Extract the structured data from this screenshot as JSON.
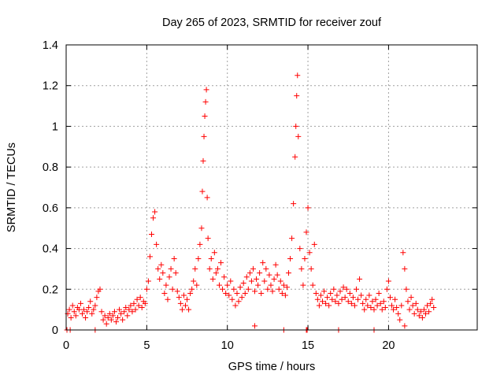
{
  "chart_data": {
    "type": "scatter",
    "title": "Day 265 of 2023, SRMTID for receiver zouf",
    "xlabel": "GPS time / hours",
    "ylabel": "SRMTID / TECUs",
    "xlim": [
      0,
      25.5
    ],
    "ylim": [
      0,
      1.4
    ],
    "xticks": [
      0,
      5,
      10,
      15,
      20
    ],
    "yticks": [
      0,
      0.2,
      0.4,
      0.6,
      0.8,
      1,
      1.2,
      1.4
    ],
    "xtick_labels": [
      "0",
      "5",
      "10",
      "15",
      "20"
    ],
    "ytick_labels": [
      "0",
      "0.2",
      "0.4",
      "0.6",
      "0.8",
      "1",
      "1.2",
      "1.4"
    ],
    "grid": true,
    "marker": "+",
    "series": [
      {
        "name": "SRMTID",
        "color": "#ff0000",
        "points": [
          [
            0.1,
            0.08
          ],
          [
            0.2,
            0.1
          ],
          [
            0.3,
            0.06
          ],
          [
            0.4,
            0.12
          ],
          [
            0.5,
            0.09
          ],
          [
            0.6,
            0.07
          ],
          [
            0.7,
            0.11
          ],
          [
            0.8,
            0.1
          ],
          [
            0.9,
            0.13
          ],
          [
            1.0,
            0.08
          ],
          [
            1.1,
            0.1
          ],
          [
            1.2,
            0.06
          ],
          [
            1.3,
            0.09
          ],
          [
            1.4,
            0.11
          ],
          [
            1.5,
            0.14
          ],
          [
            1.6,
            0.08
          ],
          [
            1.7,
            0.1
          ],
          [
            1.8,
            0.12
          ],
          [
            1.9,
            0.16
          ],
          [
            2.0,
            0.19
          ],
          [
            2.1,
            0.2
          ],
          [
            2.2,
            0.09
          ],
          [
            2.3,
            0.05
          ],
          [
            2.4,
            0.07
          ],
          [
            2.5,
            0.03
          ],
          [
            2.6,
            0.06
          ],
          [
            2.7,
            0.08
          ],
          [
            2.8,
            0.05
          ],
          [
            2.9,
            0.07
          ],
          [
            3.0,
            0.09
          ],
          [
            3.1,
            0.04
          ],
          [
            3.2,
            0.06
          ],
          [
            3.3,
            0.1
          ],
          [
            3.4,
            0.08
          ],
          [
            3.5,
            0.05
          ],
          [
            3.6,
            0.09
          ],
          [
            3.7,
            0.11
          ],
          [
            3.8,
            0.07
          ],
          [
            3.9,
            0.1
          ],
          [
            4.0,
            0.12
          ],
          [
            4.1,
            0.09
          ],
          [
            4.2,
            0.13
          ],
          [
            4.3,
            0.1
          ],
          [
            4.4,
            0.15
          ],
          [
            4.5,
            0.12
          ],
          [
            4.6,
            0.16
          ],
          [
            4.7,
            0.11
          ],
          [
            4.8,
            0.14
          ],
          [
            4.9,
            0.13
          ],
          [
            5.0,
            0.2
          ],
          [
            5.1,
            0.24
          ],
          [
            5.2,
            0.36
          ],
          [
            5.3,
            0.47
          ],
          [
            5.4,
            0.55
          ],
          [
            5.5,
            0.58
          ],
          [
            5.6,
            0.42
          ],
          [
            5.7,
            0.3
          ],
          [
            5.8,
            0.25
          ],
          [
            5.9,
            0.32
          ],
          [
            6.0,
            0.28
          ],
          [
            6.1,
            0.18
          ],
          [
            6.2,
            0.22
          ],
          [
            6.3,
            0.15
          ],
          [
            6.4,
            0.26
          ],
          [
            6.5,
            0.3
          ],
          [
            6.6,
            0.2
          ],
          [
            6.7,
            0.35
          ],
          [
            6.8,
            0.28
          ],
          [
            6.9,
            0.19
          ],
          [
            7.0,
            0.16
          ],
          [
            7.1,
            0.13
          ],
          [
            7.2,
            0.1
          ],
          [
            7.3,
            0.17
          ],
          [
            7.4,
            0.12
          ],
          [
            7.5,
            0.15
          ],
          [
            7.6,
            0.1
          ],
          [
            7.7,
            0.18
          ],
          [
            7.8,
            0.2
          ],
          [
            7.9,
            0.24
          ],
          [
            8.0,
            0.3
          ],
          [
            8.1,
            0.22
          ],
          [
            8.2,
            0.35
          ],
          [
            8.3,
            0.42
          ],
          [
            8.4,
            0.5
          ],
          [
            8.45,
            0.68
          ],
          [
            8.5,
            0.83
          ],
          [
            8.55,
            0.95
          ],
          [
            8.6,
            1.05
          ],
          [
            8.65,
            1.12
          ],
          [
            8.7,
            1.18
          ],
          [
            8.75,
            0.65
          ],
          [
            8.8,
            0.45
          ],
          [
            8.9,
            0.3
          ],
          [
            9.0,
            0.35
          ],
          [
            9.1,
            0.25
          ],
          [
            9.2,
            0.38
          ],
          [
            9.3,
            0.28
          ],
          [
            9.4,
            0.3
          ],
          [
            9.5,
            0.22
          ],
          [
            9.6,
            0.33
          ],
          [
            9.7,
            0.2
          ],
          [
            9.8,
            0.26
          ],
          [
            9.9,
            0.18
          ],
          [
            10.0,
            0.22
          ],
          [
            10.1,
            0.17
          ],
          [
            10.2,
            0.24
          ],
          [
            10.3,
            0.15
          ],
          [
            10.4,
            0.2
          ],
          [
            10.5,
            0.12
          ],
          [
            10.6,
            0.18
          ],
          [
            10.7,
            0.14
          ],
          [
            10.8,
            0.21
          ],
          [
            10.9,
            0.16
          ],
          [
            11.0,
            0.23
          ],
          [
            11.1,
            0.18
          ],
          [
            11.2,
            0.26
          ],
          [
            11.3,
            0.2
          ],
          [
            11.4,
            0.28
          ],
          [
            11.5,
            0.24
          ],
          [
            11.6,
            0.3
          ],
          [
            11.7,
            0.19
          ],
          [
            11.8,
            0.25
          ],
          [
            11.9,
            0.22
          ],
          [
            12.0,
            0.28
          ],
          [
            12.1,
            0.18
          ],
          [
            12.2,
            0.33
          ],
          [
            12.3,
            0.24
          ],
          [
            12.4,
            0.3
          ],
          [
            12.5,
            0.2
          ],
          [
            12.6,
            0.27
          ],
          [
            12.7,
            0.22
          ],
          [
            12.8,
            0.19
          ],
          [
            12.9,
            0.25
          ],
          [
            13.0,
            0.32
          ],
          [
            13.1,
            0.27
          ],
          [
            13.2,
            0.2
          ],
          [
            13.3,
            0.24
          ],
          [
            13.4,
            0.18
          ],
          [
            13.5,
            0.22
          ],
          [
            13.6,
            0.17
          ],
          [
            13.7,
            0.21
          ],
          [
            13.8,
            0.28
          ],
          [
            13.9,
            0.35
          ],
          [
            14.0,
            0.45
          ],
          [
            14.1,
            0.62
          ],
          [
            14.2,
            0.85
          ],
          [
            14.25,
            1.0
          ],
          [
            14.3,
            1.15
          ],
          [
            14.35,
            1.25
          ],
          [
            14.4,
            0.95
          ],
          [
            14.5,
            0.4
          ],
          [
            14.6,
            0.3
          ],
          [
            14.7,
            0.22
          ],
          [
            14.8,
            0.35
          ],
          [
            14.9,
            0.48
          ],
          [
            15.0,
            0.6
          ],
          [
            15.1,
            0.38
          ],
          [
            15.2,
            0.3
          ],
          [
            15.3,
            0.22
          ],
          [
            15.4,
            0.42
          ],
          [
            15.5,
            0.18
          ],
          [
            15.6,
            0.15
          ],
          [
            15.7,
            0.12
          ],
          [
            15.8,
            0.17
          ],
          [
            15.9,
            0.14
          ],
          [
            16.0,
            0.19
          ],
          [
            16.1,
            0.13
          ],
          [
            16.2,
            0.16
          ],
          [
            16.3,
            0.12
          ],
          [
            16.4,
            0.18
          ],
          [
            16.5,
            0.15
          ],
          [
            16.6,
            0.2
          ],
          [
            16.7,
            0.14
          ],
          [
            16.8,
            0.17
          ],
          [
            16.9,
            0.13
          ],
          [
            17.0,
            0.19
          ],
          [
            17.1,
            0.15
          ],
          [
            17.2,
            0.21
          ],
          [
            17.3,
            0.16
          ],
          [
            17.4,
            0.2
          ],
          [
            17.5,
            0.14
          ],
          [
            17.6,
            0.18
          ],
          [
            17.7,
            0.13
          ],
          [
            17.8,
            0.16
          ],
          [
            17.9,
            0.12
          ],
          [
            18.0,
            0.2
          ],
          [
            18.1,
            0.15
          ],
          [
            18.2,
            0.25
          ],
          [
            18.3,
            0.17
          ],
          [
            18.4,
            0.13
          ],
          [
            18.5,
            0.1
          ],
          [
            18.6,
            0.15
          ],
          [
            18.7,
            0.12
          ],
          [
            18.8,
            0.17
          ],
          [
            18.9,
            0.11
          ],
          [
            19.0,
            0.14
          ],
          [
            19.1,
            0.1
          ],
          [
            19.2,
            0.15
          ],
          [
            19.3,
            0.12
          ],
          [
            19.4,
            0.18
          ],
          [
            19.5,
            0.13
          ],
          [
            19.6,
            0.1
          ],
          [
            19.7,
            0.14
          ],
          [
            19.8,
            0.11
          ],
          [
            19.9,
            0.2
          ],
          [
            20.0,
            0.24
          ],
          [
            20.1,
            0.16
          ],
          [
            20.2,
            0.12
          ],
          [
            20.3,
            0.1
          ],
          [
            20.4,
            0.15
          ],
          [
            20.5,
            0.11
          ],
          [
            20.6,
            0.08
          ],
          [
            20.7,
            0.05
          ],
          [
            20.8,
            0.12
          ],
          [
            20.9,
            0.38
          ],
          [
            21.0,
            0.3
          ],
          [
            21.1,
            0.2
          ],
          [
            21.2,
            0.14
          ],
          [
            21.3,
            0.1
          ],
          [
            21.4,
            0.16
          ],
          [
            21.5,
            0.12
          ],
          [
            21.6,
            0.08
          ],
          [
            21.7,
            0.13
          ],
          [
            21.8,
            0.1
          ],
          [
            21.9,
            0.07
          ],
          [
            22.0,
            0.09
          ],
          [
            22.1,
            0.06
          ],
          [
            22.2,
            0.1
          ],
          [
            22.3,
            0.08
          ],
          [
            22.4,
            0.12
          ],
          [
            22.5,
            0.09
          ],
          [
            22.6,
            0.13
          ],
          [
            22.7,
            0.15
          ],
          [
            22.8,
            0.11
          ],
          [
            0.05,
            0.0
          ],
          [
            0.25,
            0.0
          ],
          [
            1.8,
            0.0
          ],
          [
            14.9,
            0.0
          ],
          [
            14.95,
            0.0
          ],
          [
            13.5,
            0.0
          ],
          [
            19.1,
            0.0
          ],
          [
            21.0,
            0.02
          ],
          [
            16.9,
            0.0
          ],
          [
            11.7,
            0.02
          ]
        ]
      }
    ]
  }
}
